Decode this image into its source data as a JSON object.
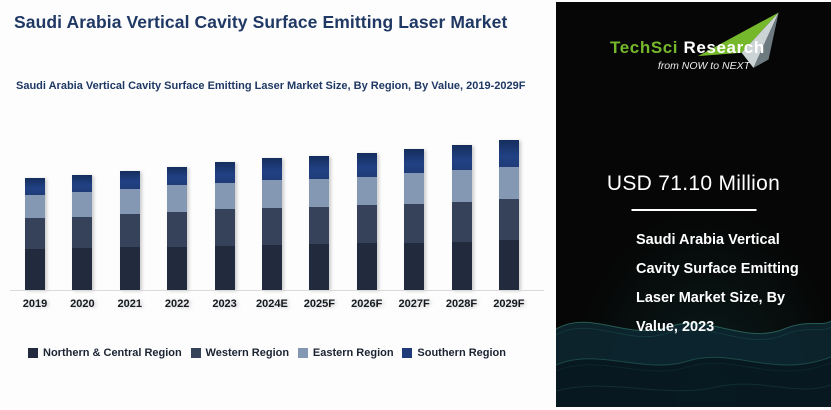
{
  "header": {
    "title": "Saudi Arabia Vertical Cavity Surface Emitting Laser Market",
    "subtitle": "Saudi Arabia Vertical Cavity Surface Emitting Laser Market Size, By Region, By Value, 2019-2029F"
  },
  "chart_data": {
    "type": "bar",
    "stacked": true,
    "unit": "USD Million",
    "title": "Saudi Arabia Vertical Cavity Surface Emitting Laser Market Size, By Region, By Value, 2019-2029F",
    "categories": [
      "2019",
      "2020",
      "2021",
      "2022",
      "2023",
      "2024E",
      "2025F",
      "2026F",
      "2027F",
      "2028F",
      "2029F"
    ],
    "series": [
      {
        "name": "Northern & Central Region",
        "color": "#222B3D",
        "values": [
          22.7,
          23.2,
          23.8,
          24.0,
          24.5,
          25.1,
          25.4,
          26.0,
          26.3,
          26.8,
          27.8
        ]
      },
      {
        "name": "Western Region",
        "color": "#36415A",
        "values": [
          17.3,
          17.6,
          18.4,
          19.6,
          20.6,
          20.7,
          20.9,
          21.0,
          21.5,
          22.3,
          22.7
        ]
      },
      {
        "name": "Eastern Region",
        "color": "#8497B3",
        "values": [
          12.6,
          13.6,
          13.9,
          14.6,
          14.3,
          15.1,
          15.4,
          15.8,
          17.0,
          17.5,
          17.7
        ]
      },
      {
        "name": "Southern Region",
        "color": "#1F3C78",
        "gradient": [
          "#152E5D",
          "#214184"
        ],
        "values": [
          9.7,
          9.2,
          10.2,
          10.2,
          11.7,
          12.5,
          13.0,
          13.6,
          13.8,
          14.1,
          15.4
        ]
      }
    ],
    "totals": [
      62.3,
      63.6,
      66.3,
      68.4,
      71.1,
      73.4,
      74.7,
      76.4,
      78.6,
      80.7,
      83.6
    ],
    "legend_position": "bottom",
    "grid": false,
    "ylim": [
      0,
      90
    ],
    "xlabel": "",
    "ylabel": ""
  },
  "brand": {
    "logo_part1": "TechSci",
    "logo_part2": "Research",
    "tagline": "from NOW to NEXT",
    "green": "#76B82C"
  },
  "callout": {
    "value": "USD 71.10 Million",
    "caption": "Saudi Arabia Vertical Cavity Surface Emitting Laser Market Size, By Value, 2023"
  }
}
